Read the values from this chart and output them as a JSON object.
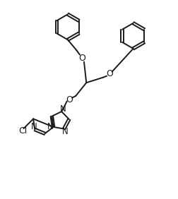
{
  "bg_color": "#ffffff",
  "line_color": "#1a1a1a",
  "line_width": 1.4,
  "figsize": [
    2.52,
    2.82
  ],
  "dpi": 100,
  "xlim": [
    0,
    10
  ],
  "ylim": [
    0,
    11.2
  ]
}
